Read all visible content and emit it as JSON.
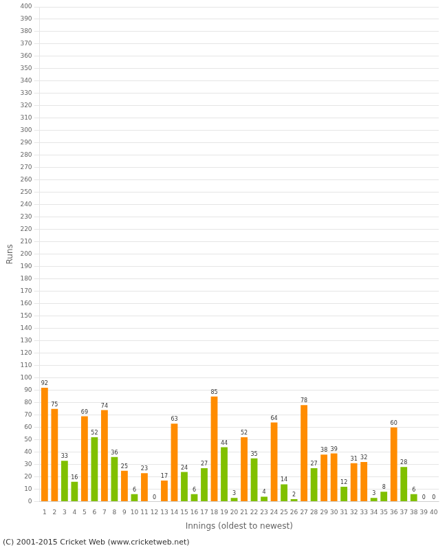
{
  "chart_data": {
    "type": "bar",
    "categories": [
      "1",
      "2",
      "3",
      "4",
      "5",
      "6",
      "7",
      "8",
      "9",
      "10",
      "11",
      "12",
      "13",
      "14",
      "15",
      "16",
      "17",
      "18",
      "19",
      "20",
      "21",
      "22",
      "23",
      "24",
      "25",
      "26",
      "27",
      "28",
      "29",
      "30",
      "31",
      "32",
      "33",
      "34",
      "35",
      "36",
      "37",
      "38",
      "39",
      "40"
    ],
    "values": [
      92,
      75,
      33,
      16,
      69,
      52,
      74,
      36,
      25,
      6,
      23,
      0,
      17,
      63,
      24,
      6,
      27,
      85,
      44,
      3,
      52,
      35,
      4,
      64,
      14,
      2,
      78,
      27,
      38,
      39,
      12,
      31,
      32,
      3,
      8,
      60,
      28,
      6,
      0,
      0
    ],
    "colors": [
      "#FF8C00",
      "#FF8C00",
      "#80C000",
      "#80C000",
      "#FF8C00",
      "#80C000",
      "#FF8C00",
      "#80C000",
      "#FF8C00",
      "#80C000",
      "#FF8C00",
      "#80C000",
      "#FF8C00",
      "#FF8C00",
      "#80C000",
      "#80C000",
      "#80C000",
      "#FF8C00",
      "#80C000",
      "#80C000",
      "#FF8C00",
      "#80C000",
      "#80C000",
      "#FF8C00",
      "#80C000",
      "#80C000",
      "#FF8C00",
      "#80C000",
      "#FF8C00",
      "#FF8C00",
      "#80C000",
      "#FF8C00",
      "#FF8C00",
      "#80C000",
      "#80C000",
      "#FF8C00",
      "#80C000",
      "#80C000",
      "#FF8C00",
      "#80C000"
    ],
    "xlabel": "Innings (oldest to newest)",
    "ylabel": "Runs",
    "ylim": [
      0,
      400
    ],
    "yticks": [
      0,
      10,
      20,
      30,
      40,
      50,
      60,
      70,
      80,
      90,
      100,
      110,
      120,
      130,
      140,
      150,
      160,
      170,
      180,
      190,
      200,
      210,
      220,
      230,
      240,
      250,
      260,
      270,
      280,
      290,
      300,
      310,
      320,
      330,
      340,
      350,
      360,
      370,
      380,
      390,
      400
    ],
    "grid": true,
    "data_labels": true,
    "annotations": [
      "(C) 2001-2015 Cricket Web (www.cricketweb.net)"
    ]
  }
}
